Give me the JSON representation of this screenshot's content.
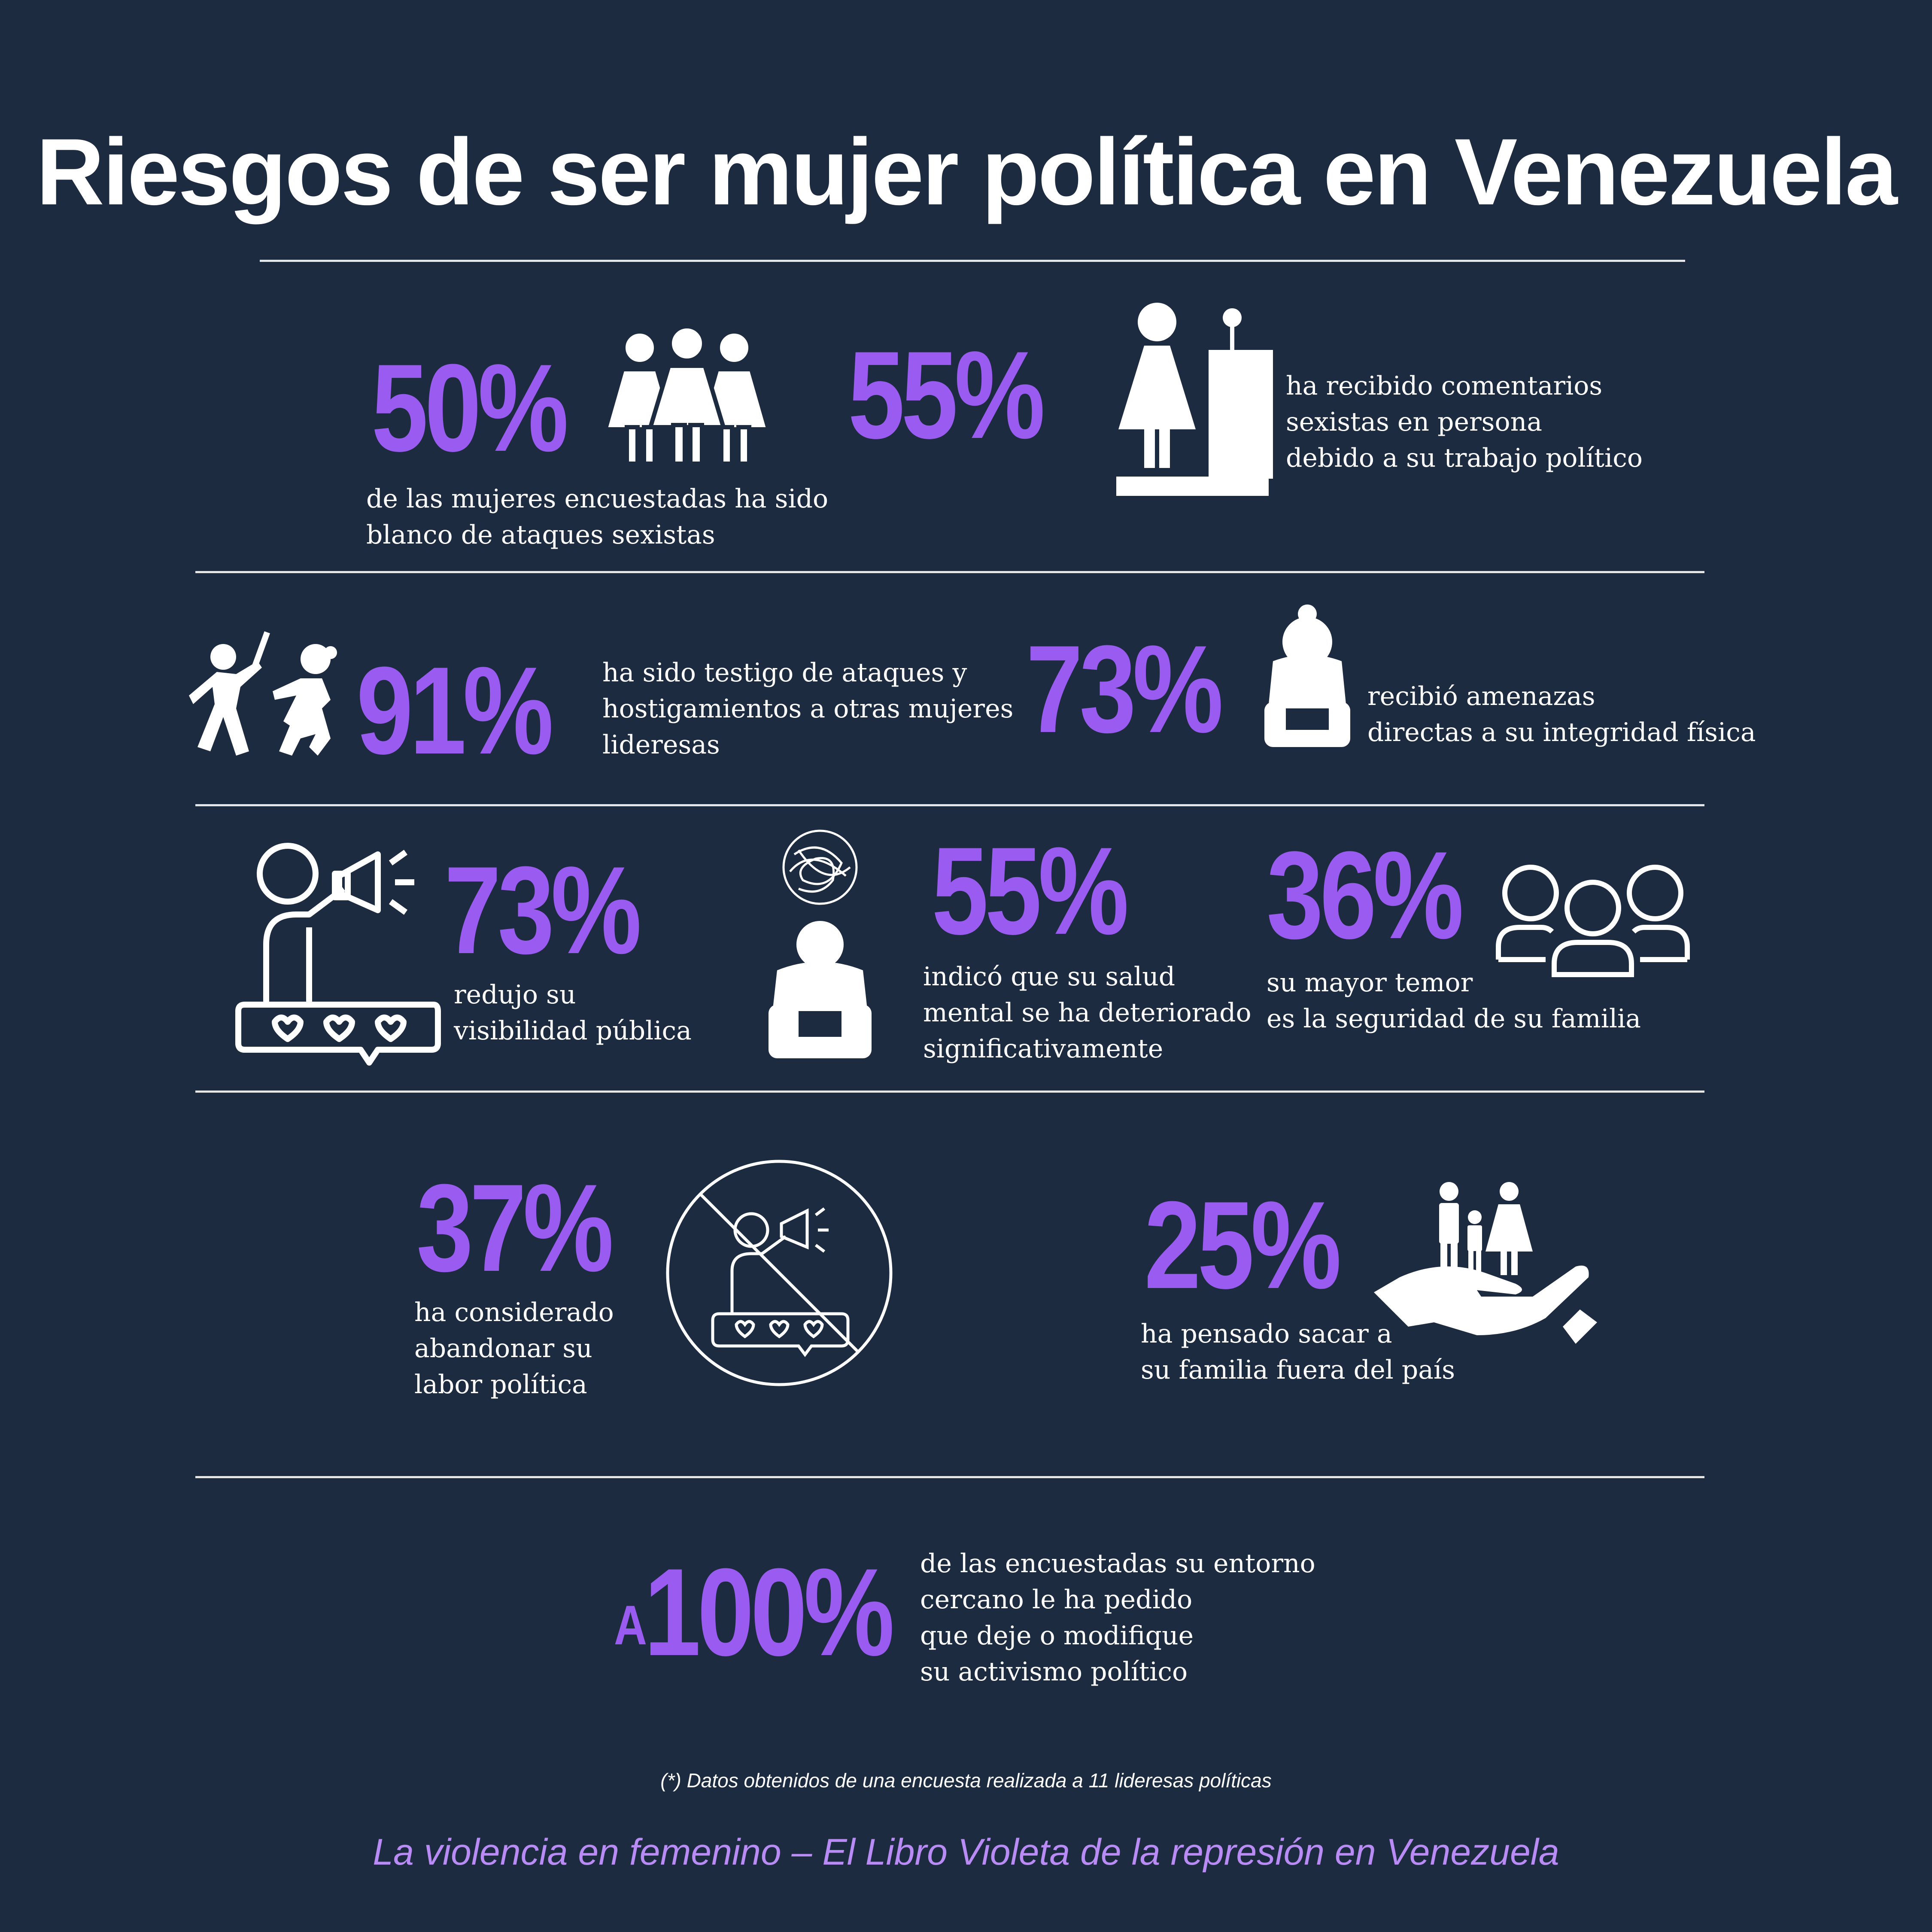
{
  "title": "Riesgos de ser mujer política en Venezuela",
  "colors": {
    "background": "#1c2b40",
    "accent": "#9a5cf0",
    "text": "#ffffff",
    "source": "#b98cf5"
  },
  "stats": [
    {
      "value": "50%",
      "text": [
        "de las mujeres encuestadas ha sido",
        "blanco de ataques sexistas"
      ],
      "icon": "three-women-icon"
    },
    {
      "value": "55%",
      "text": [
        "ha recibido comentarios",
        "sexistas en persona",
        "debido a su trabajo político"
      ],
      "icon": "woman-at-podium-icon"
    },
    {
      "value": "91%",
      "text": [
        "ha sido testigo de ataques y",
        "hostigamientos a otras mujeres",
        "lideresas"
      ],
      "icon": "attack-icon"
    },
    {
      "value": "73%",
      "text": [
        "recibió amenazas",
        "directas a su integridad física"
      ],
      "icon": "frightened-woman-icon"
    },
    {
      "value": "73%",
      "text": [
        "redujo su",
        "visibilidad pública"
      ],
      "icon": "megaphone-person-icon"
    },
    {
      "value": "55%",
      "text": [
        "indicó que su salud",
        "mental se ha deteriorado",
        "significativamente"
      ],
      "icon": "anxious-person-icon"
    },
    {
      "value": "36%",
      "text": [
        "su mayor temor",
        "es la seguridad de su familia"
      ],
      "icon": "family-group-icon"
    },
    {
      "value": "37%",
      "text": [
        "ha considerado",
        "abandonar su",
        "labor política"
      ],
      "icon": "no-megaphone-icon"
    },
    {
      "value": "25%",
      "text": [
        "ha pensado sacar a",
        "su familia fuera del país"
      ],
      "icon": "family-in-hands-icon"
    },
    {
      "prefix": "A",
      "value": "100%",
      "text": [
        "de las encuestadas su entorno",
        "cercano le ha pedido",
        "que deje o modifique",
        "su activismo político"
      ]
    }
  ],
  "footnote": "(*) Datos obtenidos de una encuesta realizada a 11 lideresas políticas",
  "source": "La violencia en femenino – El Libro Violeta de la represión en Venezuela"
}
